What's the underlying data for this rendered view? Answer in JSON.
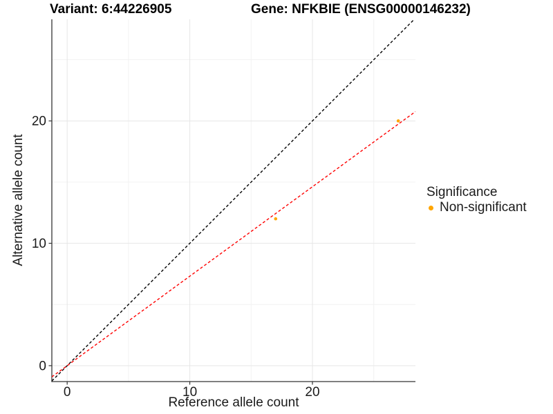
{
  "chart_data": {
    "type": "scatter",
    "titles": [
      "Variant: 6:44226905",
      "Gene: NFKBIE (ENSG00000146232)"
    ],
    "xlabel": "Reference allele count",
    "ylabel": "Alternative allele count",
    "xlim": [
      -1.25,
      28.4
    ],
    "ylim": [
      -1.3,
      28.3
    ],
    "x_major_ticks": [
      0,
      10,
      20
    ],
    "y_major_ticks": [
      0,
      10,
      20
    ],
    "x_minor_ticks": [
      5,
      15,
      25
    ],
    "y_minor_ticks": [
      5,
      15,
      25
    ],
    "grid": true,
    "points": [
      {
        "x": 17,
        "y": 12,
        "series": "Non-significant"
      },
      {
        "x": 27,
        "y": 20,
        "series": "Non-significant"
      }
    ],
    "point_color": "#FFA500",
    "lines": [
      {
        "name": "identity-line",
        "slope": 1.0,
        "intercept": 0,
        "color": "#000000",
        "style": "dashed"
      },
      {
        "name": "fit-line",
        "slope": 0.731,
        "intercept": 0,
        "color": "#FF0000",
        "style": "dashed"
      }
    ],
    "legend": {
      "title": "Significance",
      "position": "right",
      "entries": [
        {
          "label": "Non-significant",
          "color": "#FFA500"
        }
      ]
    },
    "colors": {
      "background": "#ffffff",
      "axis": "#333333",
      "tick_text": "#1a1a1a",
      "grid_major": "#e6e6e6",
      "grid_minor": "#f2f2f2"
    }
  }
}
